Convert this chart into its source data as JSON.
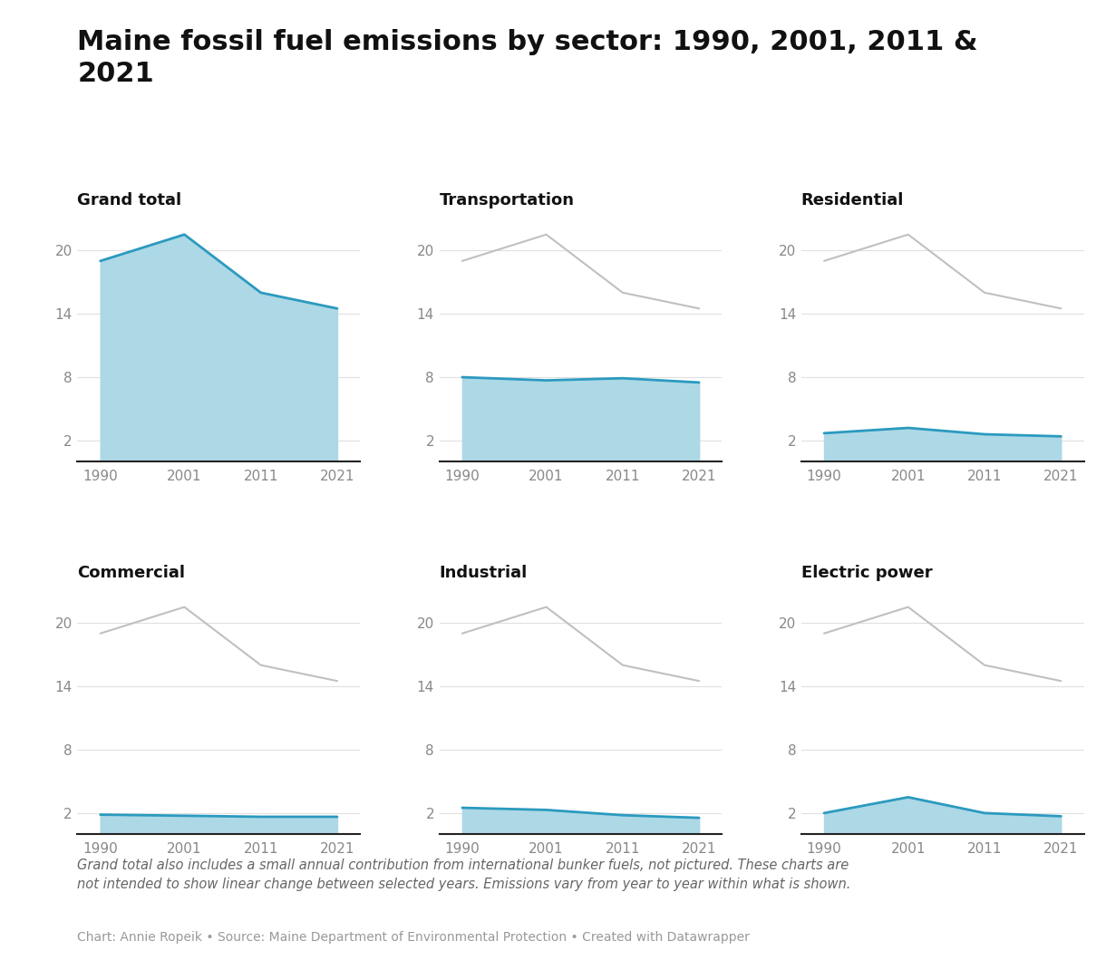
{
  "title": "Maine fossil fuel emissions by sector: 1990, 2001, 2011 &\n2021",
  "years": [
    1990,
    2001,
    2011,
    2021
  ],
  "subplots": [
    {
      "title": "Grand total",
      "values": [
        19.0,
        21.5,
        16.0,
        14.5
      ],
      "is_grand_total": true
    },
    {
      "title": "Transportation",
      "values": [
        8.0,
        7.7,
        7.9,
        7.5
      ],
      "is_grand_total": false
    },
    {
      "title": "Residential",
      "values": [
        2.7,
        3.2,
        2.6,
        2.4
      ],
      "is_grand_total": false
    },
    {
      "title": "Commercial",
      "values": [
        1.85,
        1.75,
        1.65,
        1.65
      ],
      "is_grand_total": false
    },
    {
      "title": "Industrial",
      "values": [
        2.5,
        2.3,
        1.8,
        1.55
      ],
      "is_grand_total": false
    },
    {
      "title": "Electric power",
      "values": [
        2.0,
        3.5,
        2.0,
        1.7
      ],
      "is_grand_total": false
    }
  ],
  "grand_total_values": [
    19.0,
    21.5,
    16.0,
    14.5
  ],
  "yticks": [
    2,
    8,
    14,
    20
  ],
  "ylim": [
    0,
    23.5
  ],
  "xlim": [
    1987,
    2024
  ],
  "fill_color": "#add8e6",
  "line_color": "#2b9abf",
  "gray_line_color": "#c0c0c0",
  "background_color": "#ffffff",
  "grid_color": "#e0e0e0",
  "title_color": "#111111",
  "subplot_title_color": "#111111",
  "axis_label_color": "#888888",
  "bottom_spine_color": "#222222",
  "note_text": "Grand total also includes a small annual contribution from international bunker fuels, not pictured. These charts are\nnot intended to show linear change between selected years. Emissions vary from year to year within what is shown.",
  "source_text": "Chart: Annie Ropeik • Source: Maine Department of Environmental Protection • Created with Datawrapper",
  "title_fontsize": 22,
  "subplot_title_fontsize": 13,
  "tick_fontsize": 11,
  "note_fontsize": 10.5,
  "source_fontsize": 10
}
